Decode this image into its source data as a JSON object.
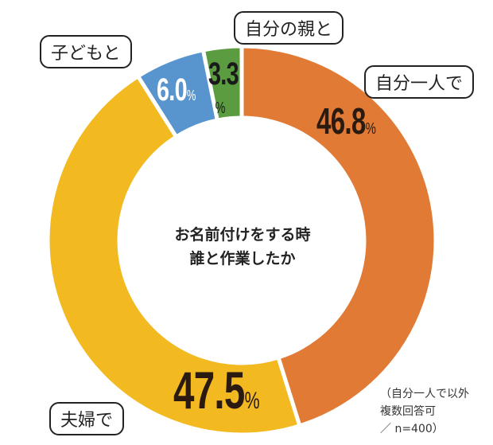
{
  "chart_data": {
    "type": "pie",
    "subtype": "donut",
    "title": "お名前付けをする時 誰と作業したか",
    "title_lines": [
      "お名前付けをする時",
      "誰と作業したか"
    ],
    "categories": [
      "自分一人で",
      "夫婦で",
      "子どもと",
      "自分の親と"
    ],
    "values": [
      46.8,
      47.5,
      6.0,
      3.3
    ],
    "value_labels": [
      "46.8",
      "47.5",
      "6.0",
      "3.3"
    ],
    "unit": "%",
    "colors": [
      "#e07a34",
      "#f2b921",
      "#5895cf",
      "#5a9c3f"
    ],
    "note_lines": [
      "（自分一人で以外",
      "複数回答可",
      "／ n=400）"
    ]
  }
}
